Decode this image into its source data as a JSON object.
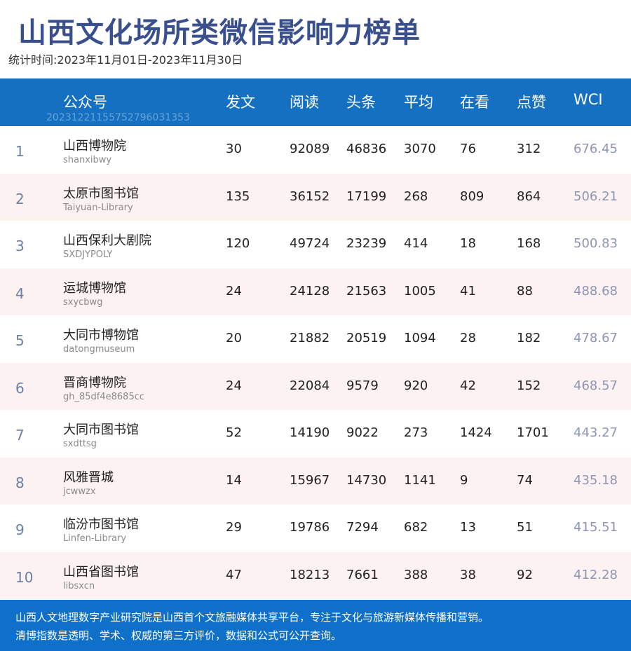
{
  "title": "山西文化场所类微信影响力榜单",
  "period": "统计时间:2023年11月01日-2023年11月30日",
  "watermark": "20231221155752796031353",
  "columns": {
    "account": "公众号",
    "posts": "发文",
    "reads": "阅读",
    "headline": "头条",
    "average": "平均",
    "watching": "在看",
    "likes": "点赞",
    "wci": "WCI"
  },
  "rows": [
    {
      "rank": "1",
      "name": "山西博物院",
      "id": "shanxibwy",
      "posts": "30",
      "reads": "92089",
      "headline": "46836",
      "average": "3070",
      "watching": "76",
      "likes": "312",
      "wci": "676.45"
    },
    {
      "rank": "2",
      "name": "太原市图书馆",
      "id": "Taiyuan-Library",
      "posts": "135",
      "reads": "36152",
      "headline": "17199",
      "average": "268",
      "watching": "809",
      "likes": "864",
      "wci": "506.21"
    },
    {
      "rank": "3",
      "name": "山西保利大剧院",
      "id": "SXDJYPOLY",
      "posts": "120",
      "reads": "49724",
      "headline": "23239",
      "average": "414",
      "watching": "18",
      "likes": "168",
      "wci": "500.83"
    },
    {
      "rank": "4",
      "name": "运城博物馆",
      "id": "sxycbwg",
      "posts": "24",
      "reads": "24128",
      "headline": "21563",
      "average": "1005",
      "watching": "41",
      "likes": "88",
      "wci": "488.68"
    },
    {
      "rank": "5",
      "name": "大同市博物馆",
      "id": "datongmuseum",
      "posts": "20",
      "reads": "21882",
      "headline": "20519",
      "average": "1094",
      "watching": "28",
      "likes": "182",
      "wci": "478.67"
    },
    {
      "rank": "6",
      "name": "晋商博物院",
      "id": "gh_85df4e8685cc",
      "posts": "24",
      "reads": "22084",
      "headline": "9579",
      "average": "920",
      "watching": "42",
      "likes": "152",
      "wci": "468.57"
    },
    {
      "rank": "7",
      "name": "大同市图书馆",
      "id": "sxdttsg",
      "posts": "52",
      "reads": "14190",
      "headline": "9022",
      "average": "273",
      "watching": "1424",
      "likes": "1701",
      "wci": "443.27"
    },
    {
      "rank": "8",
      "name": "风雅晋城",
      "id": "jcwwzx",
      "posts": "14",
      "reads": "15967",
      "headline": "14730",
      "average": "1141",
      "watching": "9",
      "likes": "74",
      "wci": "435.18"
    },
    {
      "rank": "9",
      "name": "临汾市图书馆",
      "id": "Linfen-Library",
      "posts": "29",
      "reads": "19786",
      "headline": "7294",
      "average": "682",
      "watching": "13",
      "likes": "51",
      "wci": "415.51"
    },
    {
      "rank": "10",
      "name": "山西省图书馆",
      "id": "libsxcn",
      "posts": "47",
      "reads": "18213",
      "headline": "7661",
      "average": "388",
      "watching": "38",
      "likes": "92",
      "wci": "412.28"
    }
  ],
  "footer": {
    "line1": "山西人文地理数字产业研究院是山西首个文旅融媒体共享平台，专注于文化与旅游新媒体传播和营销。",
    "line2": "清博指数是透明、学术、权威的第三方评价，数据和公式可公开查询。"
  }
}
